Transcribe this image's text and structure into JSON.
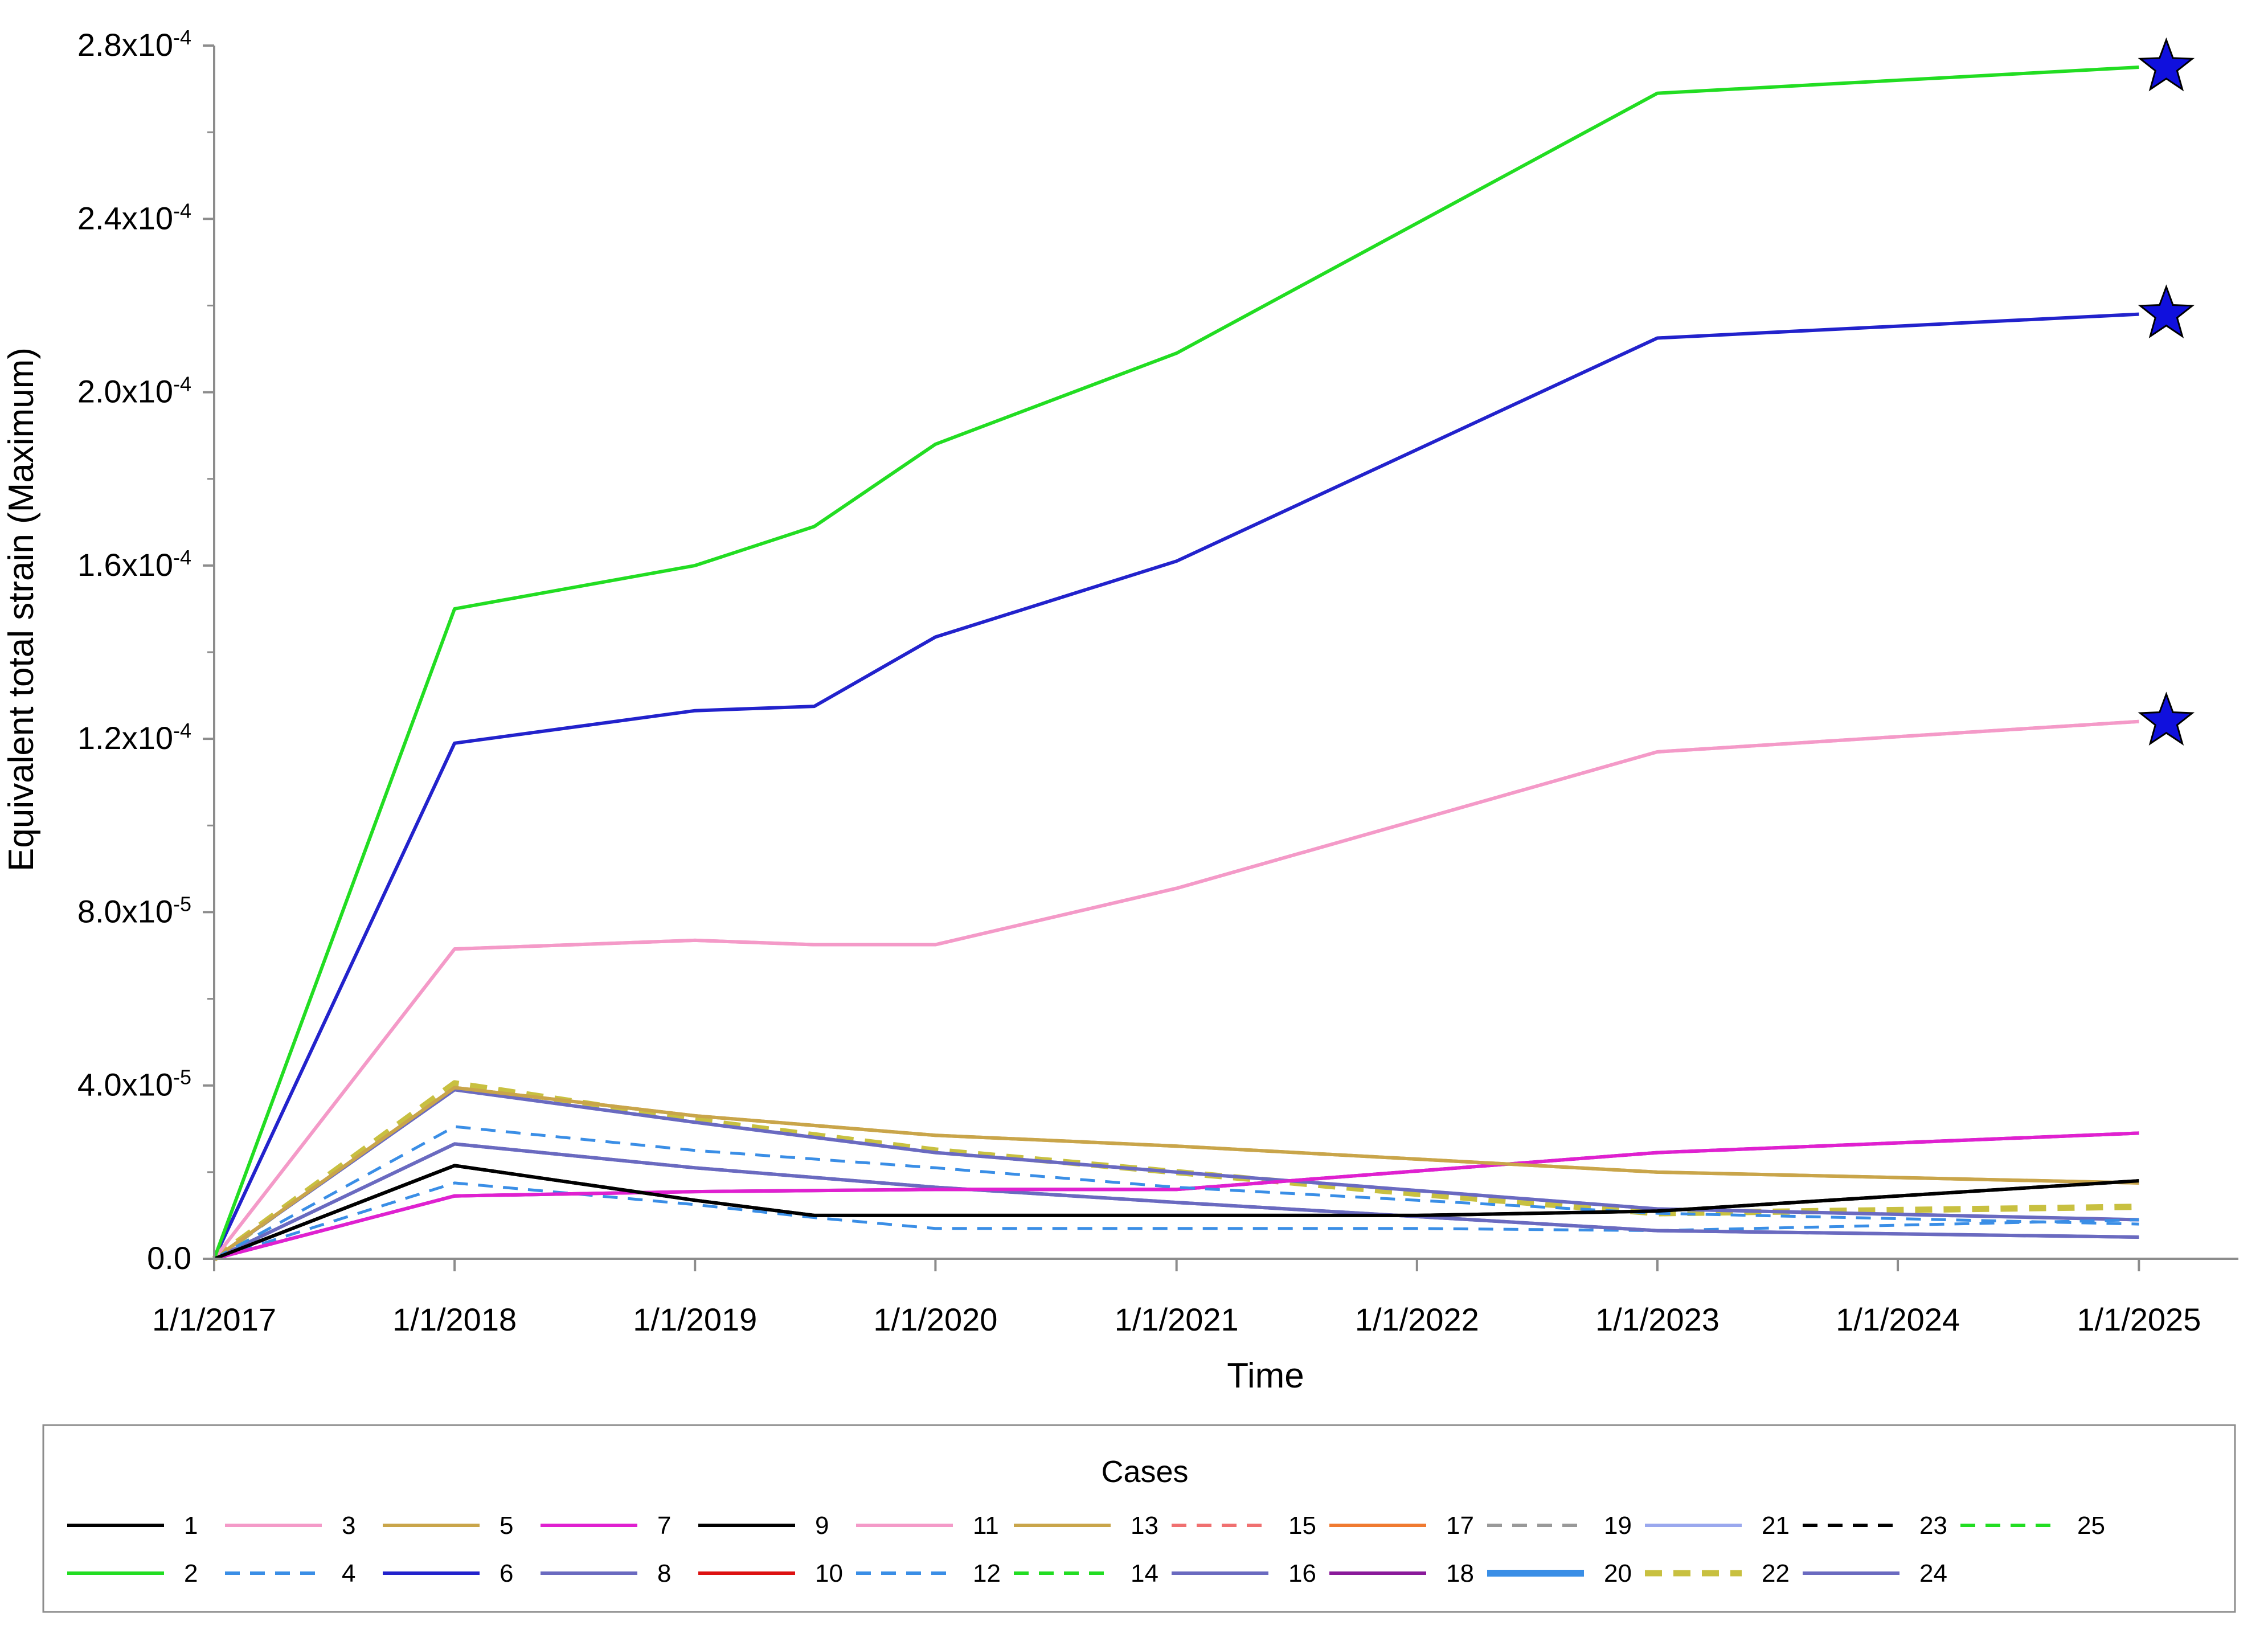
{
  "chart_data": {
    "type": "line",
    "xlabel": "Time",
    "ylabel": "Equivalent total strain (Maximum)",
    "x_ticks": [
      "1/1/2017",
      "1/1/2018",
      "1/1/2019",
      "1/1/2020",
      "1/1/2021",
      "1/1/2022",
      "1/1/2023",
      "1/1/2024",
      "1/1/2025"
    ],
    "xlim": [
      "2017-01-01",
      "2025-06-01"
    ],
    "ylim": [
      0,
      0.00028
    ],
    "y_ticks": [
      {
        "value": 0,
        "mantissa": "0.0",
        "exp": ""
      },
      {
        "value": 4e-05,
        "mantissa": "4.0x10",
        "exp": "-5"
      },
      {
        "value": 8e-05,
        "mantissa": "8.0x10",
        "exp": "-5"
      },
      {
        "value": 0.00012,
        "mantissa": "1.2x10",
        "exp": "-4"
      },
      {
        "value": 0.00016,
        "mantissa": "1.6x10",
        "exp": "-4"
      },
      {
        "value": 0.0002,
        "mantissa": "2.0x10",
        "exp": "-4"
      },
      {
        "value": 0.00024,
        "mantissa": "2.4x10",
        "exp": "-4"
      },
      {
        "value": 0.00028,
        "mantissa": "2.8x10",
        "exp": "-4"
      }
    ],
    "grid": false,
    "legend": {
      "title": "Cases",
      "placement": "bottom"
    },
    "series": [
      {
        "name": "1",
        "color": "#000000",
        "dash": "solid",
        "x": [
          "2017-01-01",
          "2018-01-01",
          "2019-01-01",
          "2019-07-01",
          "2020-01-01",
          "2021-01-01",
          "2022-01-01",
          "2023-01-01",
          "2025-01-01"
        ],
        "y": [
          0,
          2.15e-05,
          1.35e-05,
          1e-05,
          1e-05,
          1e-05,
          1e-05,
          1.1e-05,
          1.8e-05
        ]
      },
      {
        "name": "2",
        "color": "#22dd22",
        "dash": "solid",
        "x": [
          "2017-01-01",
          "2018-01-01",
          "2019-01-01",
          "2019-07-01",
          "2020-01-01",
          "2021-01-01",
          "2023-01-01",
          "2025-01-01"
        ],
        "y": [
          0,
          0.00015,
          0.00016,
          0.000169,
          0.000188,
          0.000209,
          0.000269,
          0.000275
        ]
      },
      {
        "name": "3",
        "color": "#f49ac8",
        "dash": "solid",
        "x": [
          "2017-01-01",
          "2018-01-01",
          "2019-01-01",
          "2019-07-01",
          "2020-01-01",
          "2021-01-01",
          "2023-01-01",
          "2025-01-01"
        ],
        "y": [
          0,
          7.15e-05,
          7.35e-05,
          7.25e-05,
          7.25e-05,
          8.55e-05,
          0.000117,
          0.000124
        ]
      },
      {
        "name": "4",
        "color": "#3a8ee6",
        "dash": "dashed",
        "x": [
          "2017-01-01",
          "2018-01-01",
          "2019-01-01",
          "2020-01-01",
          "2021-01-01",
          "2022-01-01",
          "2023-01-01",
          "2025-01-01"
        ],
        "y": [
          0,
          3.05e-05,
          2.5e-05,
          2.1e-05,
          1.65e-05,
          1.35e-05,
          1.05e-05,
          8e-06
        ]
      },
      {
        "name": "5",
        "color": "#c9a54a",
        "dash": "solid",
        "x": [
          "2017-01-01",
          "2018-01-01",
          "2019-01-01",
          "2020-01-01",
          "2021-01-01",
          "2022-01-01",
          "2023-01-01",
          "2025-01-01"
        ],
        "y": [
          0,
          3.95e-05,
          3.3e-05,
          2.85e-05,
          2.6e-05,
          2.3e-05,
          2e-05,
          1.75e-05
        ]
      },
      {
        "name": "6",
        "color": "#2222cc",
        "dash": "solid",
        "x": [
          "2017-01-01",
          "2018-01-01",
          "2019-01-01",
          "2019-07-01",
          "2020-01-01",
          "2021-01-01",
          "2023-01-01",
          "2025-01-01"
        ],
        "y": [
          0,
          0.000119,
          0.0001265,
          0.0001275,
          0.0001435,
          0.000161,
          0.0002125,
          0.000218
        ]
      },
      {
        "name": "7",
        "color": "#e020d0",
        "dash": "solid",
        "x": [
          "2017-01-01",
          "2018-01-01",
          "2019-01-01",
          "2020-01-01",
          "2021-01-01",
          "2023-01-01",
          "2025-01-01"
        ],
        "y": [
          0,
          1.45e-05,
          1.55e-05,
          1.6e-05,
          1.6e-05,
          2.45e-05,
          2.9e-05
        ]
      },
      {
        "name": "8",
        "color": "#6a6ac0",
        "dash": "solid",
        "x": [
          "2017-01-01",
          "2018-01-01",
          "2019-01-01",
          "2020-01-01",
          "2021-01-01",
          "2023-01-01",
          "2025-01-01"
        ],
        "y": [
          0,
          2.65e-05,
          2.1e-05,
          1.65e-05,
          1.3e-05,
          6.5e-06,
          5e-06
        ]
      },
      {
        "name": "9",
        "color": "#000000",
        "dash": "solid",
        "x": [
          "2017-01-01",
          "2018-01-01",
          "2019-01-01",
          "2019-07-01",
          "2020-01-01",
          "2021-01-01",
          "2022-01-01",
          "2023-01-01",
          "2025-01-01"
        ],
        "y": [
          0,
          2.15e-05,
          1.35e-05,
          1e-05,
          1e-05,
          1e-05,
          1e-05,
          1.1e-05,
          1.8e-05
        ]
      },
      {
        "name": "10",
        "color": "#dd1111",
        "dash": "solid",
        "x": [],
        "y": []
      },
      {
        "name": "11",
        "color": "#f49ac8",
        "dash": "solid",
        "x": [
          "2017-01-01",
          "2018-01-01",
          "2019-01-01",
          "2019-07-01",
          "2020-01-01",
          "2021-01-01",
          "2023-01-01",
          "2025-01-01"
        ],
        "y": [
          0,
          7.15e-05,
          7.35e-05,
          7.25e-05,
          7.25e-05,
          8.55e-05,
          0.000117,
          0.000124
        ]
      },
      {
        "name": "12",
        "color": "#3a8ee6",
        "dash": "dashed",
        "x": [
          "2017-01-01",
          "2018-01-01",
          "2019-01-01",
          "2019-07-01",
          "2020-01-01",
          "2021-01-01",
          "2022-01-01",
          "2023-01-01",
          "2025-01-01"
        ],
        "y": [
          0,
          1.75e-05,
          1.25e-05,
          9.5e-06,
          7e-06,
          7e-06,
          7e-06,
          6.5e-06,
          9e-06
        ]
      },
      {
        "name": "13",
        "color": "#c9a54a",
        "dash": "solid",
        "x": [
          "2017-01-01",
          "2018-01-01",
          "2019-01-01",
          "2020-01-01",
          "2021-01-01",
          "2022-01-01",
          "2023-01-01",
          "2025-01-01"
        ],
        "y": [
          0,
          3.95e-05,
          3.3e-05,
          2.85e-05,
          2.6e-05,
          2.3e-05,
          2e-05,
          1.75e-05
        ]
      },
      {
        "name": "14",
        "color": "#22dd22",
        "dash": "dashed",
        "x": [
          "2017-01-01",
          "2018-01-01",
          "2019-01-01",
          "2020-01-01",
          "2021-01-01",
          "2023-01-01",
          "2025-01-01"
        ],
        "y": [
          0,
          1.45e-05,
          1.55e-05,
          1.6e-05,
          1.6e-05,
          2.45e-05,
          2.9e-05
        ]
      },
      {
        "name": "15",
        "color": "#f07070",
        "dash": "dashed",
        "x": [],
        "y": []
      },
      {
        "name": "16",
        "color": "#6a6ac0",
        "dash": "solid",
        "x": [
          "2017-01-01",
          "2018-01-01",
          "2019-01-01",
          "2020-01-01",
          "2021-01-01",
          "2023-01-01",
          "2025-01-01"
        ],
        "y": [
          0,
          3.9e-05,
          3.15e-05,
          2.45e-05,
          2e-05,
          1.15e-05,
          9e-06
        ]
      },
      {
        "name": "17",
        "color": "#f07a30",
        "dash": "solid",
        "x": [],
        "y": []
      },
      {
        "name": "18",
        "color": "#8a1a9a",
        "dash": "solid",
        "x": [
          "2017-01-01",
          "2018-01-01",
          "2019-01-01",
          "2020-01-01",
          "2021-01-01",
          "2023-01-01",
          "2025-01-01"
        ],
        "y": [
          0,
          1.45e-05,
          1.55e-05,
          1.6e-05,
          1.6e-05,
          2.45e-05,
          2.9e-05
        ]
      },
      {
        "name": "19",
        "color": "#999999",
        "dash": "dashed",
        "x": [],
        "y": []
      },
      {
        "name": "20",
        "color": "#3a8ee6",
        "dash": "solid-thick",
        "x": [],
        "y": []
      },
      {
        "name": "21",
        "color": "#9aa8ee",
        "dash": "solid",
        "x": [
          "2017-01-01",
          "2018-01-01",
          "2019-01-01",
          "2020-01-01",
          "2021-01-01",
          "2023-01-01",
          "2025-01-01"
        ],
        "y": [
          0,
          3.9e-05,
          3.15e-05,
          2.45e-05,
          2e-05,
          1.15e-05,
          9e-06
        ]
      },
      {
        "name": "22",
        "color": "#c8c040",
        "dash": "dashed-thick",
        "x": [
          "2017-01-01",
          "2018-01-01",
          "2019-01-01",
          "2020-01-01",
          "2021-01-01",
          "2022-01-01",
          "2023-01-01",
          "2025-01-01"
        ],
        "y": [
          0,
          4.05e-05,
          3.2e-05,
          2.5e-05,
          2e-05,
          1.5e-05,
          1.05e-05,
          1.2e-05
        ]
      },
      {
        "name": "23",
        "color": "#000000",
        "dash": "dashed",
        "x": [],
        "y": []
      },
      {
        "name": "24",
        "color": "#6a6ac0",
        "dash": "solid",
        "x": [
          "2017-01-01",
          "2018-01-01",
          "2019-01-01",
          "2020-01-01",
          "2021-01-01",
          "2023-01-01",
          "2025-01-01"
        ],
        "y": [
          0,
          2.65e-05,
          2.1e-05,
          1.65e-05,
          1.3e-05,
          6.5e-06,
          5e-06
        ]
      },
      {
        "name": "25",
        "color": "#22dd22",
        "dash": "dashed",
        "x": [],
        "y": []
      }
    ],
    "markers": [
      {
        "shape": "star",
        "color": "#1010dd",
        "x": "2025-01-01",
        "y": 0.000275
      },
      {
        "shape": "star",
        "color": "#1010dd",
        "x": "2025-01-01",
        "y": 0.000218
      },
      {
        "shape": "star",
        "color": "#1010dd",
        "x": "2025-01-01",
        "y": 0.000124
      }
    ]
  }
}
